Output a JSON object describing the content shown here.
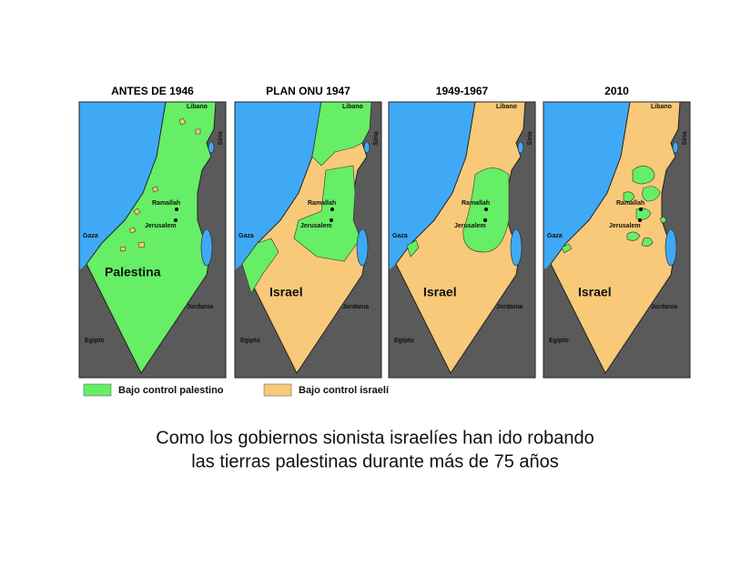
{
  "maps": [
    {
      "title": "ANTES DE 1946",
      "main_label": "Palestina",
      "labels": {
        "lebanon": "Libano",
        "syria": "Siria",
        "ramallah": "Ramallah",
        "jerusalem": "Jerusalem",
        "gaza": "Gaza",
        "jordan": "Jordania",
        "egypt": "Egipto"
      }
    },
    {
      "title": "PLAN ONU 1947",
      "main_label": "Israel",
      "labels": {
        "lebanon": "Libano",
        "syria": "Siria",
        "ramallah": "Ramallah",
        "jerusalem": "Jerusalem",
        "gaza": "Gaza",
        "jordan": "Jordania",
        "egypt": "Egipto"
      }
    },
    {
      "title": "1949-1967",
      "main_label": "Israel",
      "labels": {
        "lebanon": "Libano",
        "syria": "Siria",
        "ramallah": "Ramallah",
        "jerusalem": "Jerusalem",
        "gaza": "Gaza",
        "jordan": "Jordania",
        "egypt": "Egipto"
      }
    },
    {
      "title": "2010",
      "main_label": "Israel",
      "labels": {
        "lebanon": "Libano",
        "syria": "Siria",
        "ramallah": "Ramallah",
        "jerusalem": "Jerusalem",
        "gaza": "Gaza",
        "jordan": "Jordania",
        "egypt": "Egipto"
      }
    }
  ],
  "legend": [
    {
      "label": "Bajo control palestino",
      "color": "#66ee66"
    },
    {
      "label": "Bajo control israelí",
      "color": "#f8c978"
    }
  ],
  "caption": [
    "Como los gobiernos sionista israelíes han ido robando",
    "las tierras palestinas durante más de 75 años"
  ]
}
